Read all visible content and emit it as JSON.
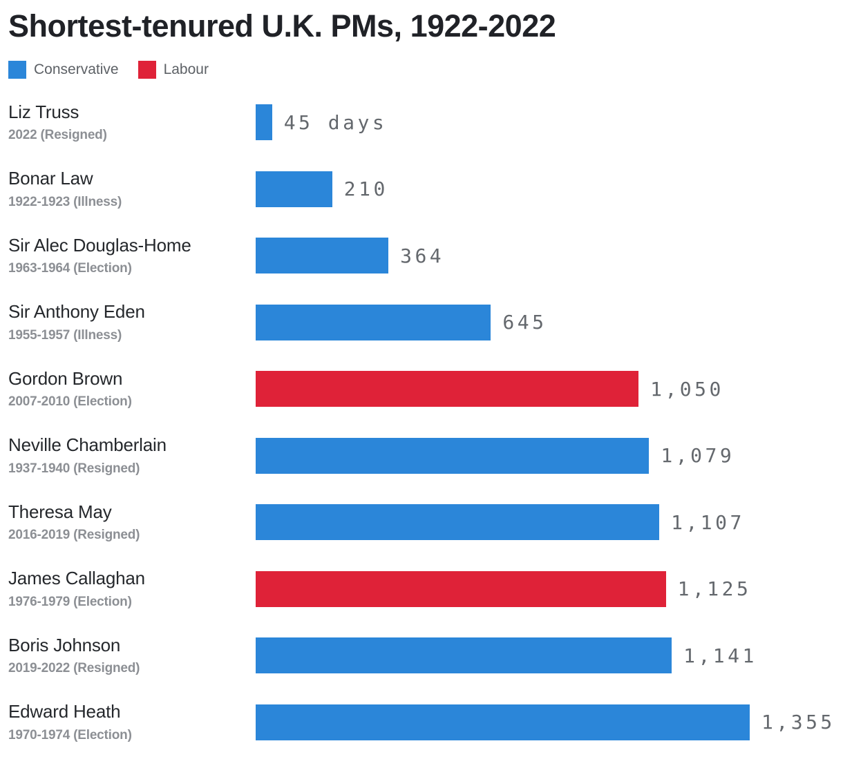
{
  "title": "Shortest-tenured U.K. PMs, 1922-2022",
  "legend": [
    {
      "label": "Conservative",
      "color": "#2b86d9"
    },
    {
      "label": "Labour",
      "color": "#df2238"
    }
  ],
  "colors": {
    "Conservative": "#2b86d9",
    "Labour": "#df2238"
  },
  "chart_data": {
    "type": "bar",
    "orientation": "horizontal",
    "title": "Shortest-tenured U.K. PMs, 1922-2022",
    "unit": "days in office",
    "xlim": [
      0,
      1355
    ],
    "grid": false,
    "legend_position": "top-left",
    "legend": [
      "Conservative",
      "Labour"
    ],
    "bars": [
      {
        "name": "Liz Truss",
        "detail": "2022 (Resigned)",
        "value": 45,
        "value_label": "45 days",
        "party": "Conservative"
      },
      {
        "name": "Bonar Law",
        "detail": "1922-1923 (Illness)",
        "value": 210,
        "value_label": "210",
        "party": "Conservative"
      },
      {
        "name": "Sir Alec Douglas-Home",
        "detail": "1963-1964 (Election)",
        "value": 364,
        "value_label": "364",
        "party": "Conservative"
      },
      {
        "name": "Sir Anthony Eden",
        "detail": "1955-1957 (Illness)",
        "value": 645,
        "value_label": "645",
        "party": "Conservative"
      },
      {
        "name": "Gordon Brown",
        "detail": "2007-2010 (Election)",
        "value": 1050,
        "value_label": "1,050",
        "party": "Labour"
      },
      {
        "name": "Neville Chamberlain",
        "detail": "1937-1940 (Resigned)",
        "value": 1079,
        "value_label": "1,079",
        "party": "Conservative"
      },
      {
        "name": "Theresa May",
        "detail": "2016-2019 (Resigned)",
        "value": 1107,
        "value_label": "1,107",
        "party": "Conservative"
      },
      {
        "name": "James Callaghan",
        "detail": "1976-1979 (Election)",
        "value": 1125,
        "value_label": "1,125",
        "party": "Labour"
      },
      {
        "name": "Boris Johnson",
        "detail": "2019-2022 (Resigned)",
        "value": 1141,
        "value_label": "1,141",
        "party": "Conservative"
      },
      {
        "name": "Edward Heath",
        "detail": "1970-1974 (Election)",
        "value": 1355,
        "value_label": "1,355",
        "party": "Conservative"
      }
    ]
  }
}
